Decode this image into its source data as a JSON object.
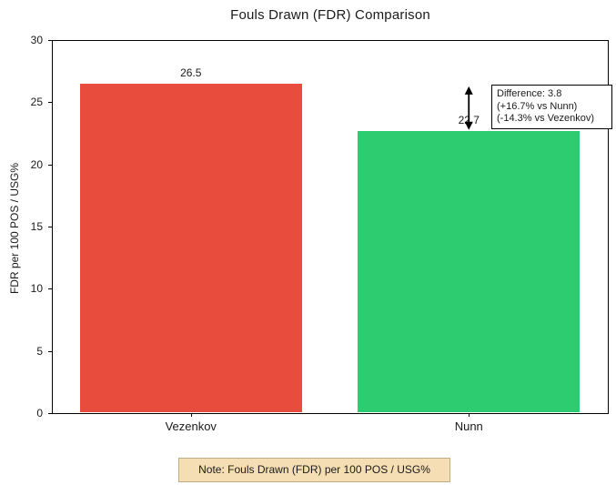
{
  "chart_data": {
    "type": "bar",
    "title": "Fouls Drawn (FDR) Comparison",
    "categories": [
      "Vezenkov",
      "Nunn"
    ],
    "values": [
      26.5,
      22.7
    ],
    "value_labels": [
      "26.5",
      "22.7"
    ],
    "bar_colors": [
      "#e74c3c",
      "#2ecc71"
    ],
    "xlabel": "",
    "ylabel": "FDR per 100 POS / USG%",
    "ylim": [
      0,
      30
    ],
    "yticks": [
      0,
      5,
      10,
      15,
      20,
      25,
      30
    ],
    "grid": false,
    "legend": false,
    "bar_width_fraction": 0.8,
    "annotation": {
      "lines": [
        "Difference: 3.8",
        "(+16.7% vs Nunn)",
        "(-14.3% vs Vezenkov)"
      ],
      "difference": 3.8,
      "pct_vs_nunn": "+16.7%",
      "pct_vs_vezenkov": "-14.3%"
    },
    "difference_arrow": {
      "at_category": "Nunn",
      "from_value": 26.5,
      "to_value": 22.7,
      "color": "#000000"
    },
    "note": "Note: Fouls Drawn (FDR) per 100 POS / USG%",
    "note_bg": "#f5deb3"
  }
}
